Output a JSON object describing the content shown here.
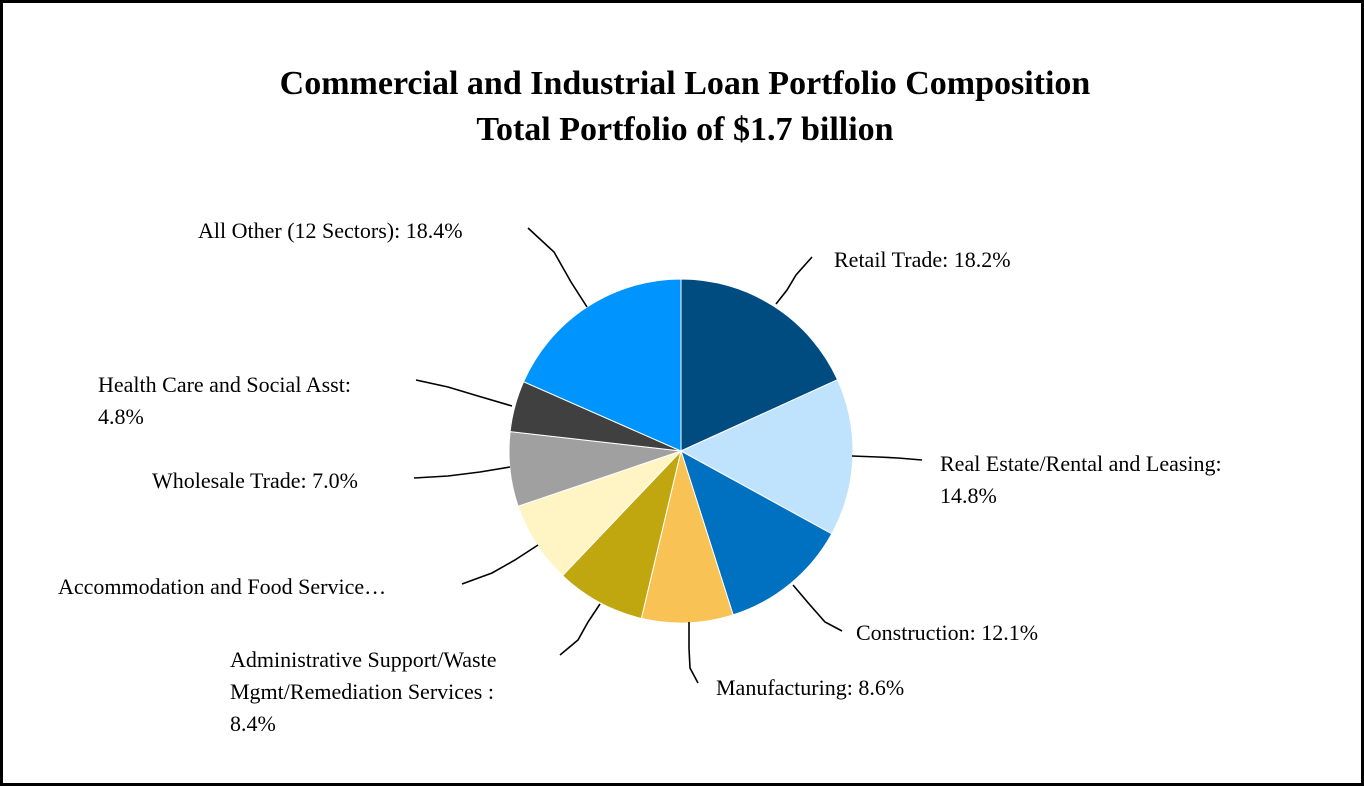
{
  "chart_data": {
    "type": "pie",
    "title": "Commercial and Industrial Loan Portfolio Composition",
    "subtitle": "Total Portfolio of $1.7 billion",
    "unit": "%",
    "slices": [
      {
        "name": "Retail Trade",
        "value": 18.2,
        "color": "#004B7F",
        "label_lines": [
          "Retail Trade: 18.2%"
        ]
      },
      {
        "name": "Real Estate/Rental and Leasing",
        "value": 14.8,
        "color": "#BFE3FC",
        "label_lines": [
          "Real Estate/Rental and Leasing:",
          "14.8%"
        ]
      },
      {
        "name": "Construction",
        "value": 12.1,
        "color": "#0070C0",
        "label_lines": [
          "Construction: 12.1%"
        ]
      },
      {
        "name": "Manufacturing",
        "value": 8.6,
        "color": "#F8C354",
        "label_lines": [
          "Manufacturing: 8.6%"
        ]
      },
      {
        "name": "Administrative Support/Waste Mgmt/Remediation Services",
        "value": 8.4,
        "color": "#C0A60F",
        "label_lines": [
          "Administrative Support/Waste",
          "Mgmt/Remediation Services :",
          "8.4%"
        ]
      },
      {
        "name": "Accommodation and Food Services",
        "value": 7.7,
        "color": "#FFF4C3",
        "label_lines": [
          "Accommodation and Food Service…"
        ]
      },
      {
        "name": "Wholesale Trade",
        "value": 7.0,
        "color": "#A0A0A0",
        "label_lines": [
          "Wholesale Trade: 7.0%"
        ]
      },
      {
        "name": "Health Care and Social Asst",
        "value": 4.8,
        "color": "#404040",
        "label_lines": [
          "Health Care and Social Asst:",
          "4.8%"
        ]
      },
      {
        "name": "All Other (12 Sectors)",
        "value": 18.4,
        "color": "#0094FF",
        "label_lines": [
          "All Other (12 Sectors): 18.4%"
        ]
      }
    ]
  }
}
